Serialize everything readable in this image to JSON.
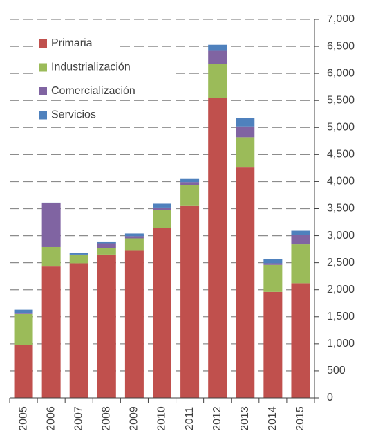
{
  "chart_data": {
    "type": "stacked_bar",
    "categories": [
      "2005",
      "2006",
      "2007",
      "2008",
      "2009",
      "2010",
      "2011",
      "2012",
      "2013",
      "2014",
      "2015"
    ],
    "series": [
      {
        "name": "Primaria",
        "color": "#c0504d",
        "values": [
          980,
          2430,
          2490,
          2650,
          2720,
          3140,
          3560,
          5550,
          4260,
          1960,
          2120
        ]
      },
      {
        "name": "Industrialización",
        "color": "#9bbb59",
        "values": [
          570,
          360,
          150,
          120,
          230,
          340,
          370,
          630,
          560,
          500,
          720
        ]
      },
      {
        "name": "Comercialización",
        "color": "#8064a2",
        "values": [
          10,
          810,
          10,
          90,
          40,
          40,
          60,
          250,
          200,
          30,
          170
        ]
      },
      {
        "name": "Servicios",
        "color": "#4f81bd",
        "values": [
          70,
          10,
          30,
          20,
          50,
          70,
          70,
          100,
          160,
          70,
          80
        ]
      }
    ],
    "ylim": [
      0,
      7000
    ],
    "yticks": [
      0,
      500,
      {
        "value": 1000,
        "label": "1,000"
      },
      {
        "value": 1500,
        "label": "1,500"
      },
      {
        "value": 2000,
        "label": "2,000"
      },
      {
        "value": 2500,
        "label": "2,500"
      },
      {
        "value": 3000,
        "label": "3,000"
      },
      {
        "value": 3500,
        "label": "3,500"
      },
      {
        "value": 4000,
        "label": "4,000"
      },
      {
        "value": 4500,
        "label": "4,500"
      },
      {
        "value": 5000,
        "label": "5,000"
      },
      {
        "value": 5500,
        "label": "5,500"
      },
      {
        "value": 6000,
        "label": "6,000"
      },
      {
        "value": 6500,
        "label": "6,500"
      },
      {
        "value": 7000,
        "label": "7,000"
      }
    ],
    "grid": true,
    "legend": "upper left"
  }
}
